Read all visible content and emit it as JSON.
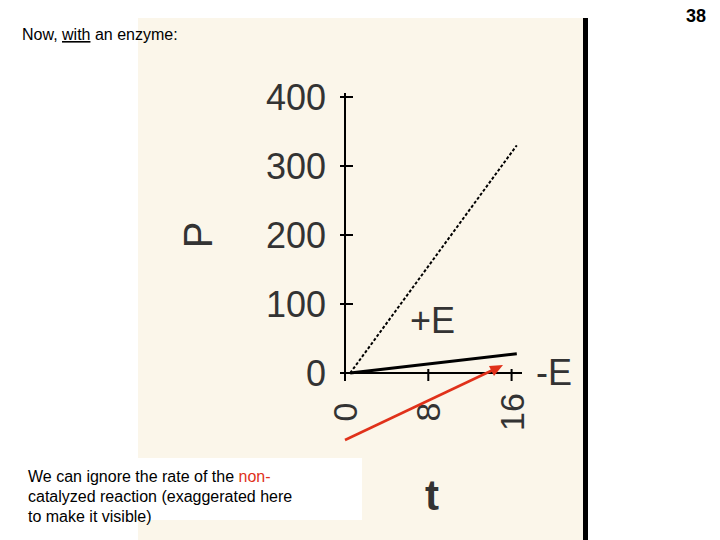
{
  "slide": {
    "title": [
      {
        "text": "Now, "
      },
      {
        "text": "with",
        "underline": true
      },
      {
        "text": " an enzyme:"
      }
    ],
    "page_number": 38,
    "note": [
      [
        {
          "text": "We can ignore the rate of the "
        },
        {
          "text": "non-",
          "color": "#e0311a"
        }
      ],
      [
        {
          "text": "catalyzed reaction (exaggerated here"
        }
      ],
      [
        {
          "text": "to make it visible)"
        }
      ]
    ]
  },
  "chart_data": {
    "type": "line",
    "x_label": "t",
    "y_label": "P",
    "x": [
      0.5,
      16.5
    ],
    "xlim": [
      0,
      17
    ],
    "xticks": [
      0,
      8,
      16
    ],
    "ylim": [
      0,
      400
    ],
    "yticks": [
      0,
      100,
      200,
      300,
      400
    ],
    "grid": false,
    "series": [
      {
        "name": "+E",
        "color": "#000000",
        "line_style": "dotted",
        "values": [
          0,
          330
        ]
      },
      {
        "name": "-E",
        "color": "#000000",
        "line_style": "solid",
        "values": [
          0,
          28
        ]
      }
    ]
  }
}
